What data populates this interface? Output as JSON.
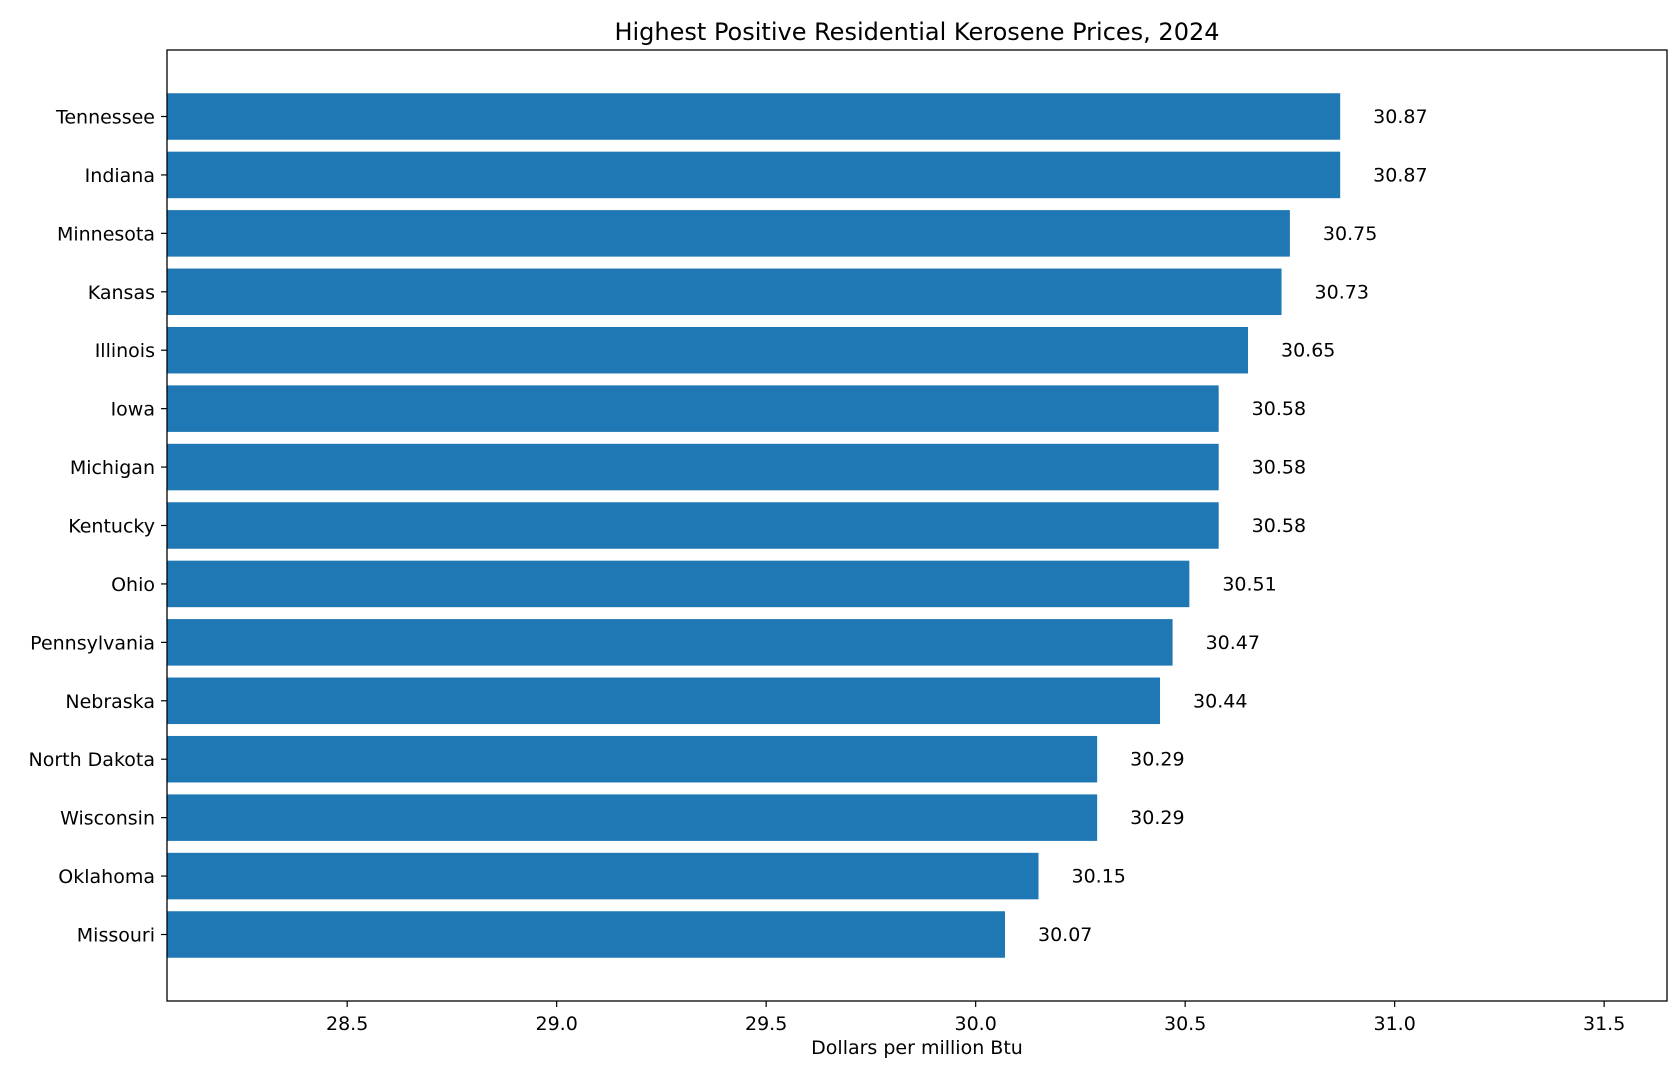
{
  "chart_data": {
    "type": "bar",
    "orientation": "horizontal",
    "title": "Highest Positive Residential Kerosene Prices, 2024",
    "xlabel": "Dollars per million Btu",
    "ylabel": "",
    "xlim": [
      28.07,
      31.65
    ],
    "xticks": [
      "28.5",
      "29.0",
      "29.5",
      "30.0",
      "30.5",
      "31.0",
      "31.5"
    ],
    "grid": false,
    "bar_color": "#1f77b4",
    "categories": [
      "Tennessee",
      "Indiana",
      "Minnesota",
      "Kansas",
      "Illinois",
      "Iowa",
      "Michigan",
      "Kentucky",
      "Ohio",
      "Pennsylvania",
      "Nebraska",
      "North Dakota",
      "Wisconsin",
      "Oklahoma",
      "Missouri"
    ],
    "values": [
      30.87,
      30.87,
      30.75,
      30.73,
      30.65,
      30.58,
      30.58,
      30.58,
      30.51,
      30.47,
      30.44,
      30.29,
      30.29,
      30.15,
      30.07
    ],
    "data_labels": [
      "30.87",
      "30.87",
      "30.75",
      "30.73",
      "30.65",
      "30.58",
      "30.58",
      "30.58",
      "30.51",
      "30.47",
      "30.44",
      "30.29",
      "30.29",
      "30.15",
      "30.07"
    ]
  }
}
